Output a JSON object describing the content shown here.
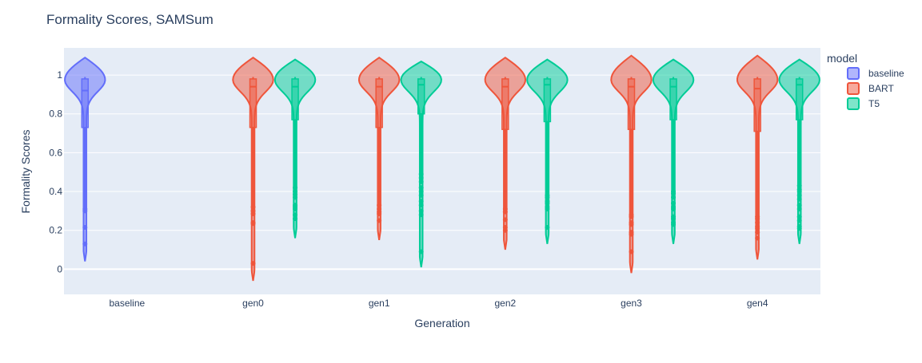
{
  "chart_data": {
    "type": "violin",
    "title": "Formality Scores, SAMSum",
    "xlabel": "Generation",
    "ylabel": "Formality Scores",
    "ylim": [
      -0.13,
      1.14
    ],
    "yticks": [
      0,
      0.2,
      0.4,
      0.6,
      0.8,
      1
    ],
    "ytick_labels": [
      "0",
      "0.2",
      "0.4",
      "0.6",
      "0.8",
      "1"
    ],
    "categories": [
      "baseline",
      "gen0",
      "gen1",
      "gen2",
      "gen3",
      "gen4"
    ],
    "grid": true,
    "legend_title": "model",
    "legend_position": "top-right",
    "series": [
      {
        "name": "baseline",
        "color": "#636efa",
        "violins": [
          {
            "category": "baseline",
            "min": 0.04,
            "max": 1.09,
            "q1": 0.73,
            "median": 0.92,
            "q3": 0.98,
            "upper_fence": 0.99,
            "lower_fence": 0.32,
            "outliers": [
              0.31,
              0.3,
              0.215,
              0.13
            ]
          }
        ]
      },
      {
        "name": "BART",
        "color": "#ef553b",
        "violins": [
          {
            "category": "gen0",
            "min": -0.06,
            "max": 1.09,
            "q1": 0.73,
            "median": 0.94,
            "q3": 0.98,
            "upper_fence": 0.99,
            "lower_fence": 0.33,
            "outliers": [
              0.32,
              0.3,
              0.285,
              0.24,
              0.235,
              0.03
            ]
          },
          {
            "category": "gen1",
            "min": 0.15,
            "max": 1.09,
            "q1": 0.73,
            "median": 0.94,
            "q3": 0.98,
            "upper_fence": 0.99,
            "lower_fence": 0.34,
            "outliers": [
              0.33,
              0.31,
              0.295,
              0.285,
              0.25
            ]
          },
          {
            "category": "gen2",
            "min": 0.1,
            "max": 1.09,
            "q1": 0.72,
            "median": 0.94,
            "q3": 0.98,
            "upper_fence": 0.99,
            "lower_fence": 0.32,
            "outliers": [
              0.31,
              0.295,
              0.255,
              0.215,
              0.2
            ]
          },
          {
            "category": "gen3",
            "min": -0.02,
            "max": 1.1,
            "q1": 0.72,
            "median": 0.94,
            "q3": 0.98,
            "upper_fence": 0.99,
            "lower_fence": 0.29,
            "outliers": [
              0.28,
              0.27,
              0.24,
              0.23,
              0.19,
              0.18,
              0.09
            ]
          },
          {
            "category": "gen4",
            "min": 0.05,
            "max": 1.1,
            "q1": 0.71,
            "median": 0.93,
            "q3": 0.98,
            "upper_fence": 0.99,
            "lower_fence": 0.28,
            "outliers": [
              0.27,
              0.26,
              0.24,
              0.22,
              0.21,
              0.19,
              0.16
            ]
          }
        ]
      },
      {
        "name": "T5",
        "color": "#00cc96",
        "violins": [
          {
            "category": "gen0",
            "min": 0.16,
            "max": 1.08,
            "q1": 0.77,
            "median": 0.94,
            "q3": 0.98,
            "upper_fence": 0.99,
            "lower_fence": 0.43,
            "outliers": [
              0.42,
              0.4,
              0.385,
              0.37,
              0.33,
              0.32,
              0.31,
              0.28,
              0.26
            ]
          },
          {
            "category": "gen1",
            "min": 0.01,
            "max": 1.07,
            "q1": 0.8,
            "median": 0.95,
            "q3": 0.98,
            "upper_fence": 0.99,
            "lower_fence": 0.5,
            "outliers": [
              0.49,
              0.47,
              0.45,
              0.42,
              0.4,
              0.38,
              0.35,
              0.33,
              0.3,
              0.28,
              0.09
            ]
          },
          {
            "category": "gen2",
            "min": 0.13,
            "max": 1.08,
            "q1": 0.76,
            "median": 0.95,
            "q3": 0.98,
            "upper_fence": 0.99,
            "lower_fence": 0.39,
            "outliers": [
              0.38,
              0.37,
              0.35,
              0.34,
              0.32,
              0.31,
              0.215
            ]
          },
          {
            "category": "gen3",
            "min": 0.13,
            "max": 1.08,
            "q1": 0.77,
            "median": 0.94,
            "q3": 0.98,
            "upper_fence": 0.99,
            "lower_fence": 0.41,
            "outliers": [
              0.4,
              0.39,
              0.37,
              0.34,
              0.32,
              0.31,
              0.27,
              0.26,
              0.24,
              0.23
            ]
          },
          {
            "category": "gen4",
            "min": 0.13,
            "max": 1.08,
            "q1": 0.77,
            "median": 0.95,
            "q3": 0.98,
            "upper_fence": 0.99,
            "lower_fence": 0.44,
            "outliers": [
              0.43,
              0.41,
              0.4,
              0.38,
              0.36,
              0.33,
              0.31,
              0.27,
              0.25,
              0.22,
              0.21
            ]
          }
        ]
      }
    ]
  }
}
